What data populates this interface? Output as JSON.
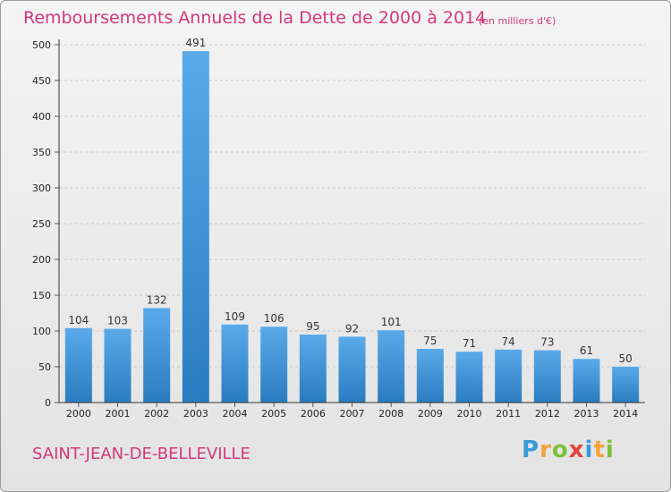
{
  "title": "Remboursements Annuels de la Dette de 2000 à 2014",
  "subtitle": "(en milliers d'€)",
  "commune": "SAINT-JEAN-DE-BELLEVILLE",
  "logo": {
    "p": "P",
    "r": "r",
    "o": "o",
    "x": "x",
    "i1": "i",
    "t": "t",
    "i2": "i"
  },
  "colors": {
    "bar_light": "#5aaaea",
    "bar_dark": "#2a7cc0",
    "text_accent": "#d2387a",
    "grid": "#c8c8c8",
    "axis_text": "#222222"
  },
  "chart_data": {
    "type": "bar",
    "categories": [
      "2000",
      "2001",
      "2002",
      "2003",
      "2004",
      "2005",
      "2006",
      "2007",
      "2008",
      "2009",
      "2010",
      "2011",
      "2012",
      "2013",
      "2014"
    ],
    "values": [
      104,
      103,
      132,
      491,
      109,
      106,
      95,
      92,
      101,
      75,
      71,
      74,
      73,
      61,
      50
    ],
    "ylim": [
      0,
      500
    ],
    "yticks": [
      0,
      50,
      100,
      150,
      200,
      250,
      300,
      350,
      400,
      450,
      500
    ],
    "grid": "horizontal dashed",
    "title": "Remboursements Annuels de la Dette de 2000 à 2014",
    "subtitle": "(en milliers d'€)"
  }
}
